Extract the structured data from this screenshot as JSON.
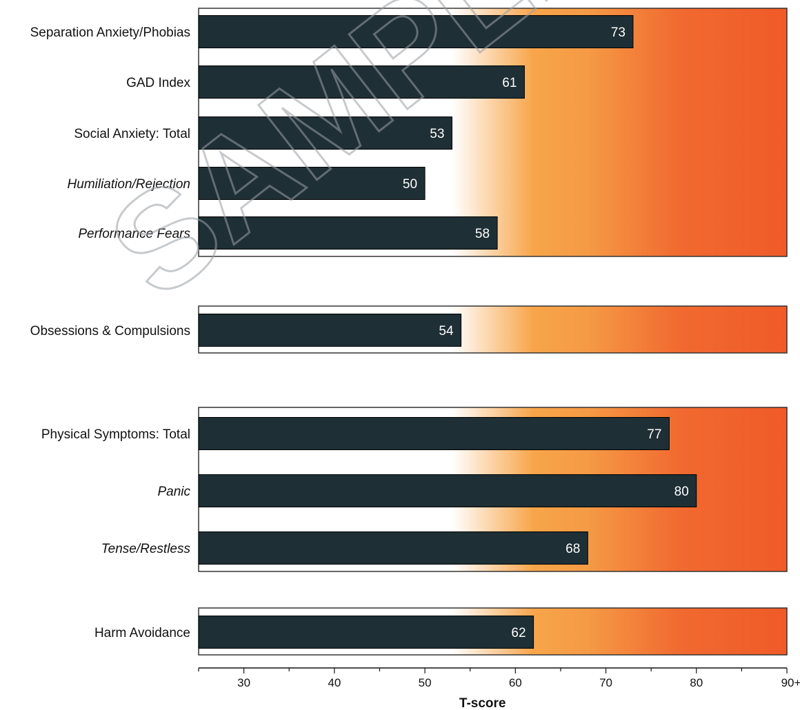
{
  "chart_data": {
    "type": "bar",
    "orientation": "horizontal",
    "xlabel": "T-score",
    "xlim": [
      25,
      90
    ],
    "ticks": [
      {
        "value": 30,
        "label": "30"
      },
      {
        "value": 40,
        "label": "40"
      },
      {
        "value": 50,
        "label": "50"
      },
      {
        "value": 60,
        "label": "60"
      },
      {
        "value": 70,
        "label": "70"
      },
      {
        "value": 80,
        "label": "80"
      },
      {
        "value": 90,
        "label": "90+"
      }
    ],
    "background_gradient": {
      "description": "white below ~53, orange 60-70, red-orange above ~80",
      "stops": [
        {
          "value": 53,
          "color": "#ffffff"
        },
        {
          "value": 62,
          "color": "#f7a54a"
        },
        {
          "value": 68,
          "color": "#f59a45"
        },
        {
          "value": 78,
          "color": "#f16a30"
        },
        {
          "value": 90,
          "color": "#f05a28"
        }
      ]
    },
    "bar_color": "#1e2f35",
    "groups": [
      {
        "items": [
          {
            "label": "Separation Anxiety/Phobias",
            "value": 73,
            "italic": false
          },
          {
            "label": "GAD Index",
            "value": 61,
            "italic": false
          },
          {
            "label": "Social Anxiety: Total",
            "value": 53,
            "italic": false
          },
          {
            "label": "Humiliation/Rejection",
            "value": 50,
            "italic": true
          },
          {
            "label": "Performance Fears",
            "value": 58,
            "italic": true
          }
        ]
      },
      {
        "items": [
          {
            "label": "Obsessions & Compulsions",
            "value": 54,
            "italic": false
          }
        ]
      },
      {
        "items": [
          {
            "label": "Physical Symptoms: Total",
            "value": 77,
            "italic": false
          },
          {
            "label": "Panic",
            "value": 80,
            "italic": true
          },
          {
            "label": "Tense/Restless",
            "value": 68,
            "italic": true
          }
        ]
      },
      {
        "items": [
          {
            "label": "Harm Avoidance",
            "value": 62,
            "italic": false
          }
        ]
      }
    ]
  },
  "watermark": "SAMPLE"
}
